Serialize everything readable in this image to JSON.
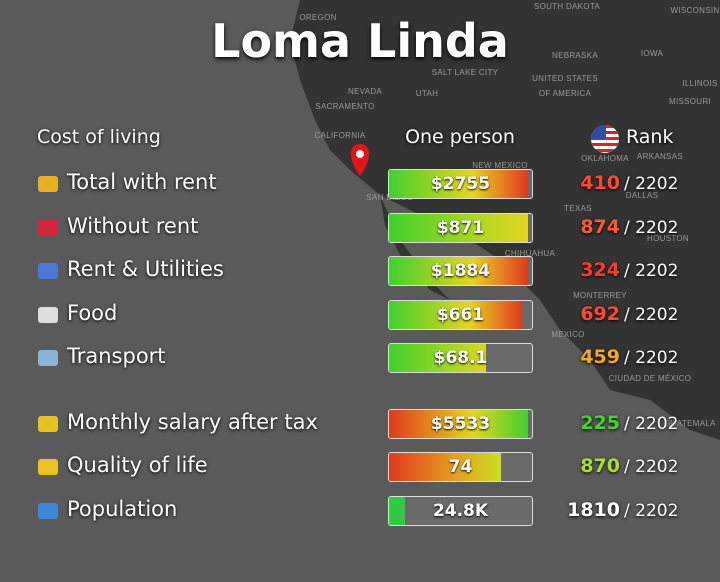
{
  "title": "Loma Linda",
  "header": {
    "category": "Cost of living",
    "value": "One person",
    "rank": "Rank"
  },
  "map_labels": [
    "OREGON",
    "SOUTH DAKOTA",
    "WISCONSIN",
    "NEBRASKA",
    "IOWA",
    "SALT LAKE CITY",
    "UNITED STATES",
    "OF AMERICA",
    "ILLINOIS",
    "NEVADA",
    "UTAH",
    "SACRAMENTO",
    "MISSOURI",
    "CALIFORNIA",
    "OKLAHOMA",
    "ARKANSAS",
    "NEW MEXICO",
    "SAN DIEGO",
    "DALLAS",
    "TEXAS",
    "HOUSTON",
    "CHIHUAHUA",
    "MONTERREY",
    "MEXICO",
    "CIUDAD DE MÉXICO",
    "GUATEMALA"
  ],
  "rows": [
    {
      "label": "Total with rent",
      "value": "$2755",
      "bar_fill": 97,
      "bar_colors": [
        "#3fd12c",
        "#e6d51f",
        "#e03a1c"
      ],
      "rank": 410,
      "rank_color": "#ff4a2e",
      "total": "/ 2202"
    },
    {
      "label": "Without rent",
      "value": "$871",
      "bar_fill": 97,
      "bar_colors": [
        "#3fd12c",
        "#a8d820",
        "#e6d51f"
      ],
      "rank": 874,
      "rank_color": "#ff5a2e",
      "total": "/ 2202"
    },
    {
      "label": "Rent & Utilities",
      "value": "$1884",
      "bar_fill": 97,
      "bar_colors": [
        "#3fd12c",
        "#e6d51f",
        "#e03a1c"
      ],
      "rank": 324,
      "rank_color": "#ff3a2a",
      "total": "/ 2202"
    },
    {
      "label": "Food",
      "value": "$661",
      "bar_fill": 93,
      "bar_colors": [
        "#3fd12c",
        "#e6d51f",
        "#e03a1c"
      ],
      "rank": 692,
      "rank_color": "#ff4a2e",
      "total": "/ 2202"
    },
    {
      "label": "Transport",
      "value": "$68.1",
      "bar_fill": 68,
      "bar_colors": [
        "#3fd12c",
        "#9bd822",
        "#e0d620"
      ],
      "rank": 459,
      "rank_color": "#f5a623",
      "total": "/ 2202"
    },
    {
      "label": "Monthly salary after tax",
      "value": "$5533",
      "bar_fill": 97,
      "bar_colors": [
        "#e03a1c",
        "#e6d51f",
        "#3fd12c"
      ],
      "rank": 225,
      "rank_color": "#44d62c",
      "total": "/ 2202"
    },
    {
      "label": "Quality of life",
      "value": "74",
      "bar_fill": 78,
      "bar_colors": [
        "#e03a1c",
        "#e6a01f",
        "#c8e020"
      ],
      "rank": 870,
      "rank_color": "#a8e02c",
      "total": "/ 2202"
    },
    {
      "label": "Population",
      "value": "24.8K",
      "bar_fill": 11,
      "bar_colors": [
        "#2ecc40",
        "#2ecc40",
        "#2ecc40"
      ],
      "rank": 1810,
      "rank_color": "#ffffff",
      "total": "/ 2202"
    }
  ]
}
